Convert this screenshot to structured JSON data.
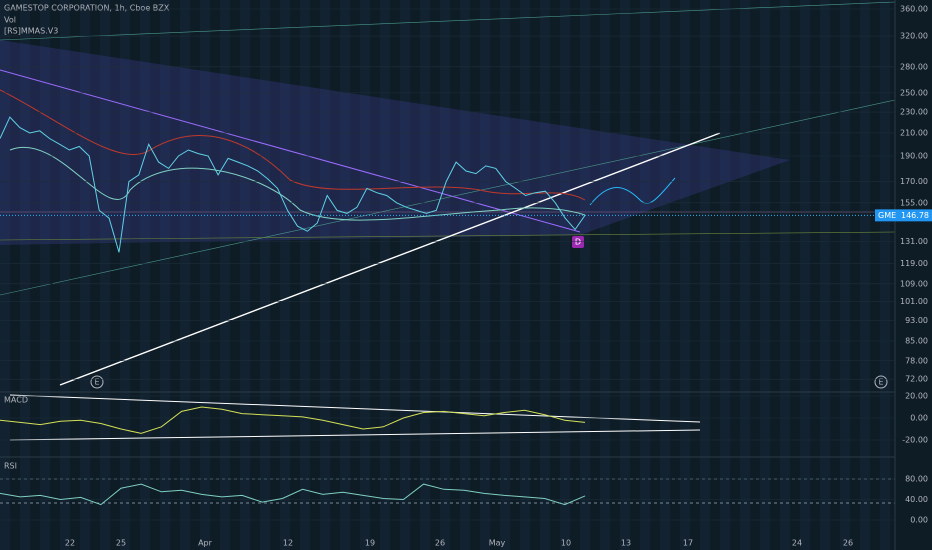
{
  "header": {
    "title": "GAMESTOP CORPORATION, 1h, Cboe BZX",
    "volume": "Vol",
    "indicator": "[RS]MMAS.V3"
  },
  "price_panel": {
    "yticks": [
      {
        "value": 360,
        "label": "360.00"
      },
      {
        "value": 320,
        "label": "320.00"
      },
      {
        "value": 280,
        "label": "280.00"
      },
      {
        "value": 250,
        "label": "250.00"
      },
      {
        "value": 230,
        "label": "230.00"
      },
      {
        "value": 210,
        "label": "210.00"
      },
      {
        "value": 190,
        "label": "190.00"
      },
      {
        "value": 170,
        "label": "170.00"
      },
      {
        "value": 155,
        "label": "155.00"
      },
      {
        "value": 131,
        "label": "131.00"
      },
      {
        "value": 119,
        "label": "119.00"
      },
      {
        "value": 109,
        "label": "109.00"
      },
      {
        "value": 101,
        "label": "101.00"
      },
      {
        "value": 93,
        "label": "93.00"
      },
      {
        "value": 85,
        "label": "85.00"
      },
      {
        "value": 78,
        "label": "78.00"
      },
      {
        "value": 72,
        "label": "72.00"
      }
    ],
    "symbol": "GME",
    "last_price": 146.78,
    "price": [
      205,
      225,
      215,
      210,
      212,
      205,
      200,
      195,
      198,
      190,
      150,
      145,
      125,
      170,
      175,
      200,
      185,
      180,
      190,
      195,
      192,
      190,
      175,
      188,
      185,
      182,
      178,
      172,
      165,
      150,
      140,
      137,
      142,
      160,
      150,
      148,
      152,
      165,
      162,
      160,
      155,
      152,
      150,
      148,
      150,
      170,
      185,
      178,
      176,
      182,
      180,
      170,
      165,
      160,
      162,
      163,
      155,
      145,
      138,
      146.78
    ],
    "marker_dividend": "D",
    "marker_earnings": [
      "E",
      "E"
    ]
  },
  "macd_panel": {
    "label": "MACD",
    "yticks": [
      {
        "value": 20,
        "label": "20.00"
      },
      {
        "value": 0,
        "label": "0.00"
      },
      {
        "value": -20,
        "label": "-20.00"
      }
    ],
    "values": [
      -2,
      -4,
      -6,
      -3,
      -2,
      -5,
      -10,
      -14,
      -8,
      6,
      10,
      8,
      4,
      3,
      2,
      1,
      -2,
      -6,
      -10,
      -8,
      0,
      5,
      6,
      4,
      2,
      5,
      7,
      3,
      -2,
      -4
    ]
  },
  "rsi_panel": {
    "label": "RSI",
    "yticks": [
      {
        "value": 80,
        "label": "80.00"
      },
      {
        "value": 40,
        "label": "40.00"
      },
      {
        "value": 0,
        "label": "0.00"
      }
    ],
    "values": [
      52,
      45,
      48,
      40,
      44,
      30,
      62,
      70,
      55,
      58,
      50,
      45,
      48,
      35,
      42,
      60,
      50,
      54,
      48,
      42,
      40,
      70,
      60,
      58,
      52,
      48,
      45,
      42,
      30,
      47
    ]
  },
  "x_axis": {
    "labels": [
      "22",
      "25",
      "Apr",
      "12",
      "19",
      "26",
      "May",
      "10",
      "13",
      "17",
      "24",
      "26"
    ]
  }
}
